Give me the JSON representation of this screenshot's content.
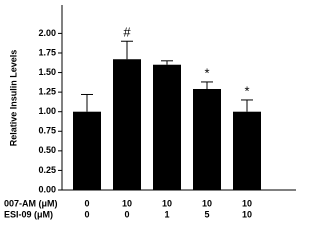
{
  "chart_data": {
    "type": "bar",
    "y_label": "Relative Insulin Levels",
    "category_rows": [
      {
        "name": "007-AM (μM)",
        "labels": [
          "0",
          "10",
          "10",
          "10",
          "10"
        ]
      },
      {
        "name": "ESI-09 (μM)",
        "labels": [
          "0",
          "0",
          "1",
          "5",
          "10"
        ]
      }
    ],
    "values": [
      1.0,
      1.67,
      1.6,
      1.29,
      1.0
    ],
    "errors": [
      0.22,
      0.23,
      0.05,
      0.09,
      0.15
    ],
    "markers": [
      null,
      "#",
      null,
      "*",
      "*"
    ],
    "color": "#000000",
    "ylim": [
      0,
      2.35
    ],
    "yticks": [
      {
        "value": 0,
        "label": "0.00"
      },
      {
        "value": 0.25,
        "label": "0.25"
      },
      {
        "value": 0.5,
        "label": "0.50"
      },
      {
        "value": 0.75,
        "label": "0.75"
      },
      {
        "value": 1,
        "label": "1.00"
      },
      {
        "value": 1.25,
        "label": "1.25"
      },
      {
        "value": 1.5,
        "label": "1.50"
      },
      {
        "value": 1.75,
        "label": "1.75"
      },
      {
        "value": 2,
        "label": "2.00"
      }
    ]
  }
}
